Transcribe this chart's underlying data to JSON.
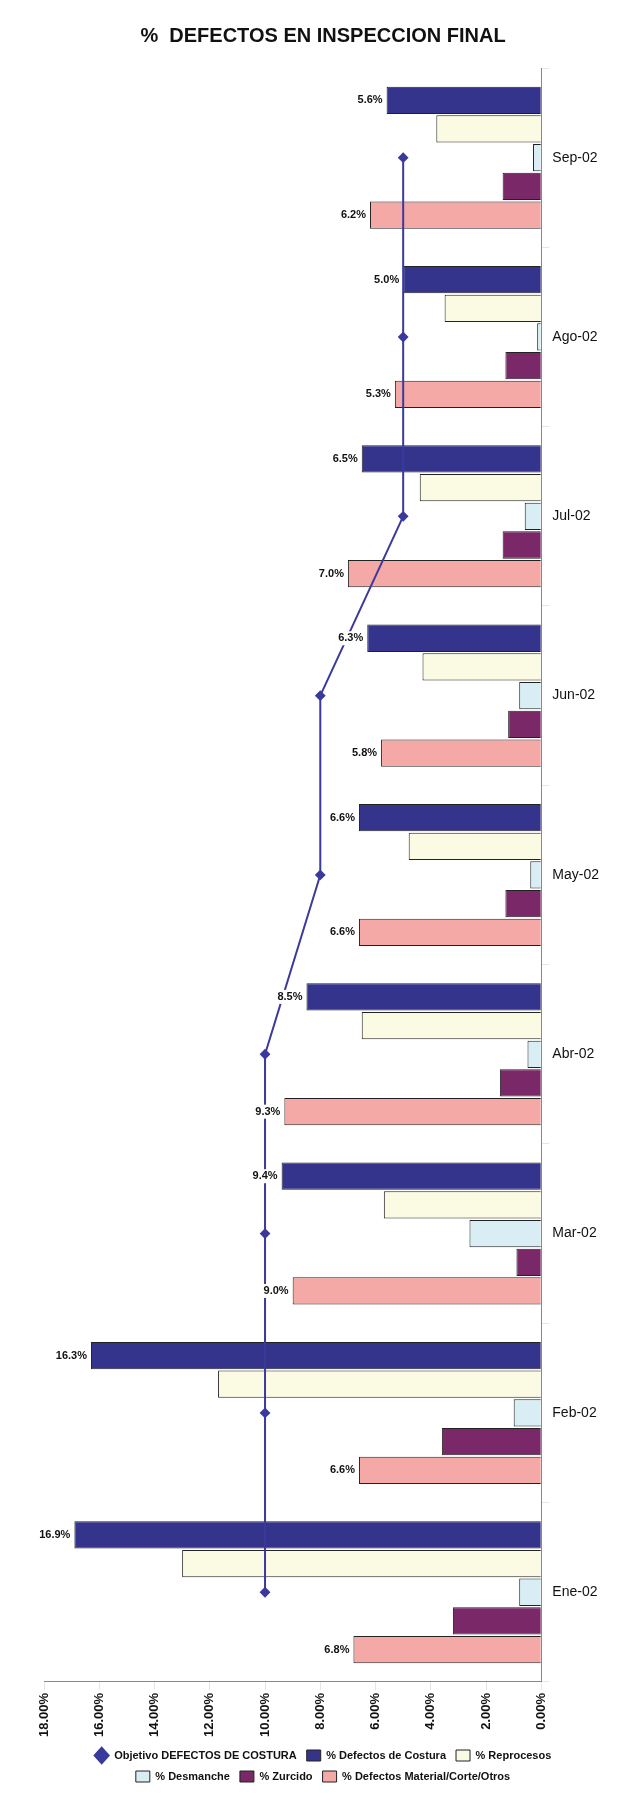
{
  "chart_data": {
    "type": "bar",
    "orientation": "horizontal",
    "title": "%  DEFECTOS EN INSPECCION FINAL",
    "categories": [
      "Sep-02",
      "Ago-02",
      "Jul-02",
      "Jun-02",
      "May-02",
      "Abr-02",
      "Mar-02",
      "Feb-02",
      "Ene-02"
    ],
    "series": [
      {
        "name": "% Defectos de Costura",
        "color": "#34348c",
        "values": [
          5.6,
          5.0,
          6.5,
          6.3,
          6.6,
          8.5,
          9.4,
          16.3,
          16.9
        ],
        "value_labels": [
          "5.6%",
          "5.0%",
          "6.5%",
          "6.3%",
          "6.6%",
          "8.5%",
          "9.4%",
          "16.3%",
          "16.9%"
        ]
      },
      {
        "name": "% Reprocesos",
        "color": "#fbfbe3",
        "values": [
          3.8,
          3.5,
          4.4,
          4.3,
          4.8,
          6.5,
          5.7,
          11.7,
          13.0
        ]
      },
      {
        "name": "% Desmanche",
        "color": "#d8eef4",
        "values": [
          0.3,
          0.15,
          0.6,
          0.8,
          0.4,
          0.5,
          2.6,
          1.0,
          0.8
        ]
      },
      {
        "name": "% Zurcido",
        "color": "#7a2868",
        "values": [
          1.4,
          1.3,
          1.4,
          1.2,
          1.3,
          1.5,
          0.9,
          3.6,
          3.2
        ]
      },
      {
        "name": "% Defectos Material/Corte/Otros",
        "color": "#f4a9a6",
        "values": [
          6.2,
          5.3,
          7.0,
          5.8,
          6.6,
          9.3,
          9.0,
          6.6,
          6.8
        ],
        "value_labels": [
          "6.2%",
          "5.3%",
          "7.0%",
          "5.8%",
          "6.6%",
          "9.3%",
          "9.0%",
          "6.6%",
          "6.8%"
        ]
      },
      {
        "name": "Objetivo DEFECTOS DE COSTURA",
        "type": "line",
        "color": "#3a3a9c",
        "marker": "diamond",
        "values": [
          5,
          5,
          5,
          8,
          8,
          10,
          10,
          10,
          10
        ]
      }
    ],
    "xlim": [
      18,
      0
    ],
    "xticks": [
      {
        "value": 18,
        "label": "18.00%"
      },
      {
        "value": 16,
        "label": "16.00%"
      },
      {
        "value": 14,
        "label": "14.00%"
      },
      {
        "value": 12,
        "label": "12.00%"
      },
      {
        "value": 10,
        "label": "10.00%"
      },
      {
        "value": 8,
        "label": "8.00%"
      },
      {
        "value": 6,
        "label": "6.00%"
      },
      {
        "value": 4,
        "label": "4.00%"
      },
      {
        "value": 2,
        "label": "2.00%"
      },
      {
        "value": 0,
        "label": "0.00%"
      }
    ],
    "grid": false,
    "legend": "bottom"
  }
}
